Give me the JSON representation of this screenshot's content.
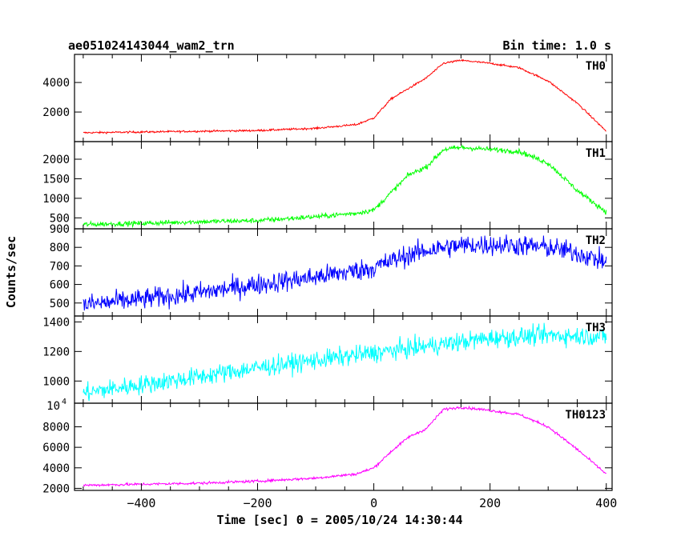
{
  "chart_data": {
    "type": "line",
    "title": "ae051024143044_wam2_trn",
    "bin_time_label": "Bin time: 1.0 s",
    "xlabel": "Time [sec] 0 = 2005/10/24 14:30:44",
    "ylabel": "Counts/sec",
    "xlim": [
      -515,
      410
    ],
    "x_ticks": [
      -400,
      -200,
      0,
      200,
      400
    ],
    "x_tick_labels": [
      "−400",
      "−200",
      "0",
      "200",
      "400"
    ],
    "grid": false,
    "panels": [
      {
        "name": "TH0",
        "color": "#ff0000",
        "ylim": [
          0,
          5900
        ],
        "ticks": [
          2000,
          4000
        ],
        "tick_labels": [
          "2000",
          "4000"
        ],
        "x": [
          -500,
          -400,
          -300,
          -200,
          -100,
          -30,
          0,
          30,
          60,
          90,
          120,
          150,
          200,
          250,
          300,
          350,
          400
        ],
        "values": [
          600,
          650,
          700,
          750,
          900,
          1150,
          1600,
          2900,
          3600,
          4300,
          5300,
          5500,
          5300,
          5000,
          4100,
          2600,
          700
        ],
        "noise": 45
      },
      {
        "name": "TH1",
        "color": "#00ff00",
        "ylim": [
          220,
          2450
        ],
        "ticks": [
          500,
          1000,
          1500,
          2000
        ],
        "tick_labels": [
          "500",
          "1000",
          "1500",
          "2000"
        ],
        "x": [
          -500,
          -400,
          -300,
          -200,
          -100,
          -30,
          0,
          30,
          60,
          90,
          120,
          150,
          200,
          250,
          300,
          350,
          400
        ],
        "values": [
          330,
          360,
          400,
          430,
          530,
          620,
          700,
          1150,
          1600,
          1800,
          2250,
          2300,
          2250,
          2200,
          1900,
          1200,
          650
        ],
        "noise": 45
      },
      {
        "name": "TH2",
        "color": "#0000ff",
        "ylim": [
          430,
          900
        ],
        "ticks": [
          500,
          600,
          700,
          800,
          900
        ],
        "tick_labels": [
          "500",
          "600",
          "700",
          "800",
          "900"
        ],
        "x": [
          -500,
          -400,
          -300,
          -200,
          -100,
          0,
          50,
          100,
          150,
          200,
          250,
          300,
          350,
          400
        ],
        "values": [
          490,
          520,
          555,
          600,
          640,
          690,
          750,
          790,
          810,
          815,
          810,
          800,
          770,
          720
        ],
        "noise": 40
      },
      {
        "name": "TH3",
        "color": "#00ffff",
        "ylim": [
          850,
          1440
        ],
        "ticks": [
          1000,
          1200,
          1400
        ],
        "tick_labels": [
          "1000",
          "1200",
          "1400"
        ],
        "x": [
          -500,
          -400,
          -300,
          -200,
          -100,
          0,
          100,
          200,
          300,
          400
        ],
        "values": [
          920,
          975,
          1030,
          1090,
          1140,
          1190,
          1240,
          1290,
          1310,
          1300
        ],
        "noise": 45
      },
      {
        "name": "TH0123",
        "color": "#ff00ff",
        "ylim": [
          1800,
          10300
        ],
        "ticks": [
          2000,
          4000,
          6000,
          8000
        ],
        "tick_labels": [
          "2000",
          "4000",
          "6000",
          "8000"
        ],
        "top_label": "10",
        "top_label_exp": "4",
        "x": [
          -500,
          -400,
          -300,
          -200,
          -100,
          -30,
          0,
          30,
          60,
          90,
          120,
          150,
          200,
          250,
          300,
          350,
          400
        ],
        "values": [
          2300,
          2400,
          2500,
          2700,
          3000,
          3400,
          4000,
          5600,
          7000,
          7800,
          9700,
          9900,
          9600,
          9200,
          8000,
          5800,
          3400
        ],
        "noise": 90
      }
    ]
  }
}
